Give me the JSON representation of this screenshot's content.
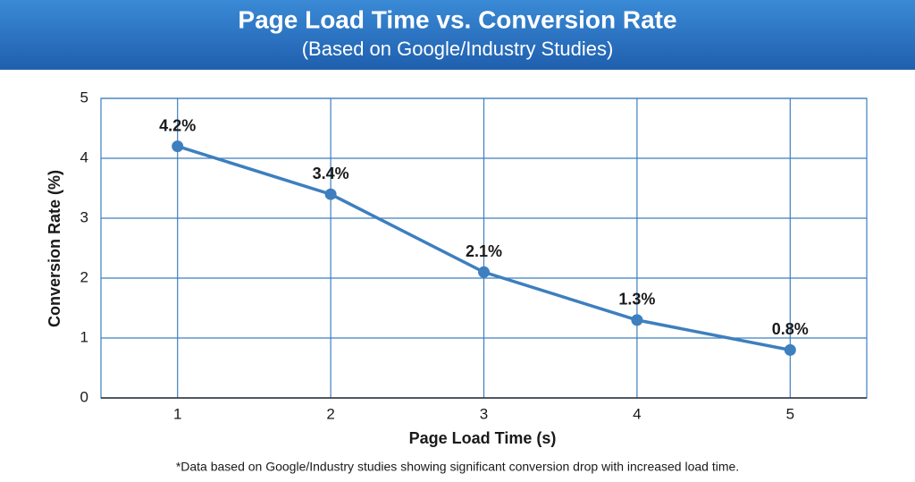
{
  "chart_data": {
    "type": "line",
    "title": "Page Load Time vs. Conversion Rate",
    "subtitle": "(Based on Google/Industry Studies)",
    "x_label": "Page Load Time (s)",
    "y_label": "Conversion Rate (%)",
    "footnote": "*Data based on Google/Industry studies showing significant conversion drop with increased load time.",
    "x": [
      1,
      2,
      3,
      4,
      5
    ],
    "values": [
      4.2,
      3.4,
      2.1,
      1.3,
      0.8
    ],
    "value_labels": [
      "4.2%",
      "3.4%",
      "2.1%",
      "1.3%",
      "0.8%"
    ],
    "color": "#3d7fbf",
    "xlim": [
      0.5,
      5.5
    ],
    "xticks": [
      1,
      2,
      3,
      4,
      5
    ],
    "ylim": [
      0,
      5
    ],
    "yticks": [
      0,
      1,
      2,
      3,
      4,
      5
    ],
    "grid": true
  }
}
